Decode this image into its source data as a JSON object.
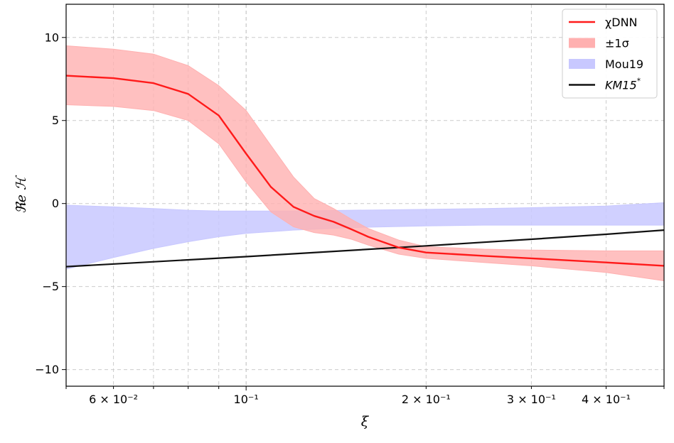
{
  "chart_data": {
    "type": "area",
    "title": "",
    "xlabel": "ξ",
    "ylabel": "ℜe ℋ",
    "xscale": "log",
    "xlim": [
      0.05,
      0.5
    ],
    "ylim": [
      -11,
      12
    ],
    "grid": true,
    "legend_position": "top-right",
    "x_ticks": [
      {
        "value": 0.06,
        "label": "6 × 10⁻²"
      },
      {
        "value": 0.1,
        "label": "10⁻¹"
      },
      {
        "value": 0.2,
        "label": "2 × 10⁻¹"
      },
      {
        "value": 0.3,
        "label": "3 × 10⁻¹"
      },
      {
        "value": 0.4,
        "label": "4 × 10⁻¹"
      }
    ],
    "y_ticks": [
      {
        "value": 10,
        "label": "10"
      },
      {
        "value": 5,
        "label": "5"
      },
      {
        "value": 0,
        "label": "0"
      },
      {
        "value": -5,
        "label": "−5"
      },
      {
        "value": -10,
        "label": "−10"
      }
    ],
    "series": [
      {
        "name": "χDNN",
        "kind": "line",
        "color": "#ff1a1a",
        "x": [
          0.05,
          0.06,
          0.07,
          0.08,
          0.09,
          0.1,
          0.11,
          0.12,
          0.13,
          0.14,
          0.15,
          0.16,
          0.18,
          0.2,
          0.25,
          0.3,
          0.4,
          0.5
        ],
        "y": [
          7.7,
          7.55,
          7.25,
          6.6,
          5.3,
          3.0,
          1.0,
          -0.2,
          -0.75,
          -1.1,
          -1.55,
          -2.0,
          -2.65,
          -2.95,
          -3.15,
          -3.3,
          -3.55,
          -3.75
        ]
      },
      {
        "name": "±1σ",
        "kind": "band",
        "color": "#ffb0b0",
        "x": [
          0.05,
          0.06,
          0.07,
          0.08,
          0.09,
          0.1,
          0.11,
          0.12,
          0.13,
          0.14,
          0.15,
          0.16,
          0.18,
          0.2,
          0.25,
          0.3,
          0.4,
          0.5
        ],
        "lower": [
          5.95,
          5.85,
          5.6,
          5.0,
          3.6,
          1.3,
          -0.5,
          -1.4,
          -1.75,
          -1.9,
          -2.15,
          -2.5,
          -3.05,
          -3.3,
          -3.55,
          -3.75,
          -4.15,
          -4.65
        ],
        "upper": [
          9.5,
          9.3,
          9.0,
          8.3,
          7.1,
          5.6,
          3.5,
          1.6,
          0.3,
          -0.3,
          -0.95,
          -1.5,
          -2.2,
          -2.6,
          -2.75,
          -2.8,
          -2.85,
          -2.85
        ]
      },
      {
        "name": "Mou19",
        "kind": "band",
        "color": "#c8c8ff",
        "x": [
          0.05,
          0.06,
          0.07,
          0.08,
          0.09,
          0.1,
          0.12,
          0.15,
          0.2,
          0.25,
          0.3,
          0.4,
          0.5
        ],
        "lower": [
          -3.95,
          -3.25,
          -2.7,
          -2.3,
          -2.0,
          -1.8,
          -1.6,
          -1.45,
          -1.35,
          -1.3,
          -1.3,
          -1.3,
          -1.3
        ],
        "upper": [
          -0.1,
          -0.2,
          -0.3,
          -0.4,
          -0.45,
          -0.45,
          -0.45,
          -0.4,
          -0.35,
          -0.3,
          -0.25,
          -0.15,
          0.05
        ]
      },
      {
        "name": "KM15*",
        "kind": "line",
        "color": "#111111",
        "x": [
          0.05,
          0.1,
          0.2,
          0.3,
          0.4,
          0.5
        ],
        "y": [
          -3.8,
          -3.2,
          -2.55,
          -2.15,
          -1.85,
          -1.6
        ]
      }
    ]
  },
  "legend": {
    "items": [
      {
        "label": "χDNN",
        "style": "line",
        "color": "#ff1a1a"
      },
      {
        "label": "±1σ",
        "style": "patch",
        "color": "#ffb0b0"
      },
      {
        "label": "Mou19",
        "style": "patch",
        "color": "#c8c8ff"
      },
      {
        "label": "KM15",
        "sup": "*",
        "style": "line",
        "color": "#111111"
      }
    ]
  }
}
